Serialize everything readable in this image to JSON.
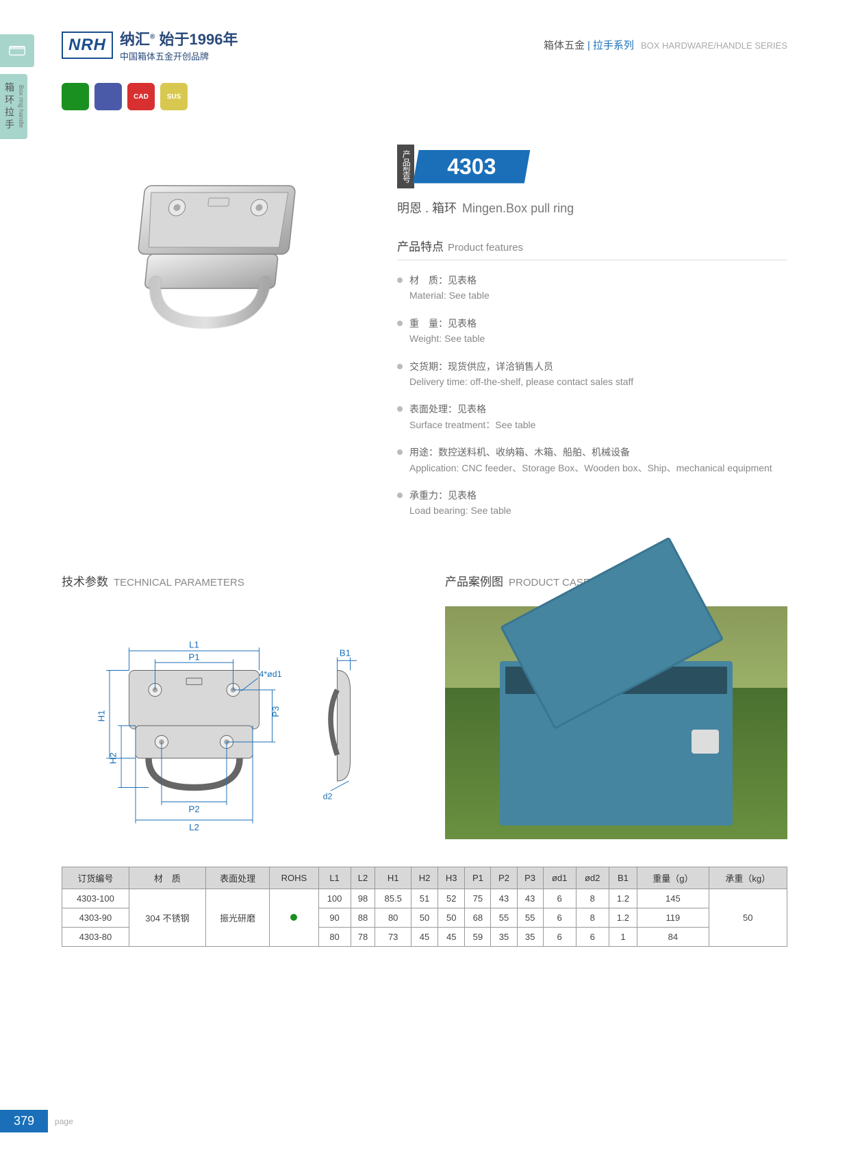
{
  "header": {
    "logo_text": "NRH",
    "brand_cn": "纳汇",
    "brand_tagline": "始于1996年",
    "brand_sub": "中国箱体五金开创品牌",
    "breadcrumb_cn1": "箱体五金",
    "breadcrumb_cn2": "拉手系列",
    "breadcrumb_en": "BOX HARDWARE/HANDLE SERIES"
  },
  "side_tab": {
    "cn": "箱环拉手",
    "en": "Box ring handle"
  },
  "badges": [
    {
      "color": "#1a9020",
      "text": ""
    },
    {
      "color": "#4a5aa8",
      "text": ""
    },
    {
      "color": "#d83030",
      "text": "CAD"
    },
    {
      "color": "#d8c850",
      "text": "SUS"
    }
  ],
  "product": {
    "model_label": "产品型号",
    "model_number": "4303",
    "name_cn": "明恩 . 箱环",
    "name_en": "Mingen.Box pull ring",
    "features_title_cn": "产品特点",
    "features_title_en": "Product features",
    "features": [
      {
        "cn": "材　质：见表格",
        "en": "Material: See table"
      },
      {
        "cn": "重　量：见表格",
        "en": "Weight: See table"
      },
      {
        "cn": "交货期：现货供应，详洽销售人员",
        "en": "Delivery time: off-the-shelf, please contact sales staff"
      },
      {
        "cn": "表面处理：见表格",
        "en": "Surface treatment：See table"
      },
      {
        "cn": "用途：数控送料机、收纳箱、木箱、船舶、机械设备",
        "en": "Application: CNC feeder、Storage Box、Wooden box、Ship、mechanical equipment"
      },
      {
        "cn": "承重力：见表格",
        "en": "Load bearing: See table"
      }
    ]
  },
  "tech": {
    "title_cn": "技术参数",
    "title_en": "TECHNICAL PARAMETERS",
    "labels": {
      "L1": "L1",
      "L2": "L2",
      "P1": "P1",
      "P2": "P2",
      "P3": "P3",
      "H1": "H1",
      "H2": "H2",
      "B1": "B1",
      "d1": "4*ød1",
      "d2": "d2"
    },
    "colors": {
      "dim": "#1a6fb8",
      "line": "#666"
    }
  },
  "case": {
    "title_cn": "产品案例图",
    "title_en": "PRODUCT CASE DIAGRAM"
  },
  "table": {
    "headers": [
      "订货编号",
      "材　质",
      "表面处理",
      "ROHS",
      "L1",
      "L2",
      "H1",
      "H2",
      "H3",
      "P1",
      "P2",
      "P3",
      "ød1",
      "ød2",
      "B1",
      "重量（g）",
      "承重（kg）"
    ],
    "rows": [
      [
        "4303-100",
        "",
        "",
        "",
        "100",
        "98",
        "85.5",
        "51",
        "52",
        "75",
        "43",
        "43",
        "6",
        "8",
        "1.2",
        "145",
        ""
      ],
      [
        "4303-90",
        "304 不锈钢",
        "振光研磨",
        "●",
        "90",
        "88",
        "80",
        "50",
        "50",
        "68",
        "55",
        "55",
        "6",
        "8",
        "1.2",
        "119",
        "50"
      ],
      [
        "4303-80",
        "",
        "",
        "",
        "80",
        "78",
        "73",
        "45",
        "45",
        "59",
        "35",
        "35",
        "6",
        "6",
        "1",
        "84",
        ""
      ]
    ],
    "merge_cols": [
      1,
      2,
      3,
      16
    ]
  },
  "footer": {
    "page_num": "379",
    "page_label": "page"
  }
}
